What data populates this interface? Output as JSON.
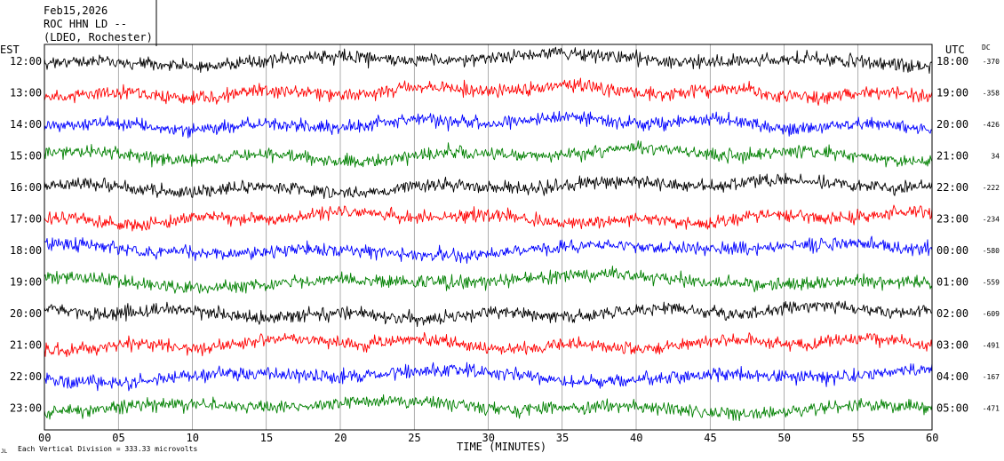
{
  "header": {
    "date": "Feb15,2026",
    "station": "ROC HHN LD --",
    "network": "(LDEO, Rochester)"
  },
  "labels": {
    "left_tz": "EST",
    "right_tz": "UTC",
    "dc": "DC",
    "xlabel": "TIME (MINUTES)",
    "footer": "Each Vertical Division =  333.33 microvolts",
    "corner_mark": "JL"
  },
  "chart_data": {
    "type": "line",
    "title": "",
    "xlabel": "TIME (MINUTES)",
    "ylabel": "",
    "xlim": [
      0,
      60
    ],
    "x_ticks": [
      "00",
      "05",
      "10",
      "15",
      "20",
      "25",
      "30",
      "35",
      "40",
      "45",
      "50",
      "55",
      "60"
    ],
    "grid": true,
    "series_colors": [
      "#000000",
      "#ff0000",
      "#0000ff",
      "#008000"
    ],
    "rows": [
      {
        "est": "12:00",
        "utc": "18:00",
        "dc": "-370",
        "color": "#000000"
      },
      {
        "est": "13:00",
        "utc": "19:00",
        "dc": "-358",
        "color": "#ff0000"
      },
      {
        "est": "14:00",
        "utc": "20:00",
        "dc": "-426",
        "color": "#0000ff"
      },
      {
        "est": "15:00",
        "utc": "21:00",
        "dc": "34",
        "color": "#008000"
      },
      {
        "est": "16:00",
        "utc": "22:00",
        "dc": "-222",
        "color": "#000000"
      },
      {
        "est": "17:00",
        "utc": "23:00",
        "dc": "-234",
        "color": "#ff0000"
      },
      {
        "est": "18:00",
        "utc": "00:00",
        "dc": "-580",
        "color": "#0000ff"
      },
      {
        "est": "19:00",
        "utc": "01:00",
        "dc": "-559",
        "color": "#008000"
      },
      {
        "est": "20:00",
        "utc": "02:00",
        "dc": "-609",
        "color": "#000000"
      },
      {
        "est": "21:00",
        "utc": "03:00",
        "dc": "-491",
        "color": "#ff0000"
      },
      {
        "est": "22:00",
        "utc": "04:00",
        "dc": "-167",
        "color": "#0000ff"
      },
      {
        "est": "23:00",
        "utc": "05:00",
        "dc": "-471",
        "color": "#008000"
      }
    ]
  }
}
